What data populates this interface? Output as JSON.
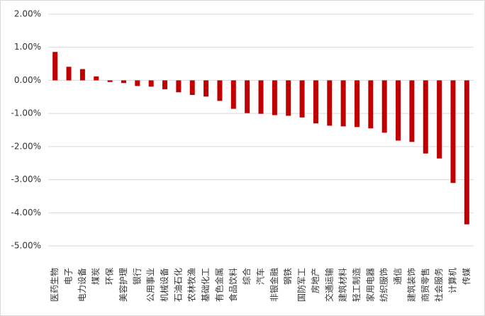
{
  "chart_data": {
    "type": "bar",
    "categories": [
      "医药生物",
      "电子",
      "电力设备",
      "煤炭",
      "环保",
      "美容护理",
      "银行",
      "公用事业",
      "机械设备",
      "石油石化",
      "农林牧渔",
      "基础化工",
      "有色金属",
      "食品饮料",
      "综合",
      "汽车",
      "非银金融",
      "钢铁",
      "国防军工",
      "房地产",
      "交通运输",
      "建筑材料",
      "轻工制造",
      "家用电器",
      "纺织服饰",
      "通信",
      "建筑装饰",
      "商贸零售",
      "社会服务",
      "计算机",
      "传媒"
    ],
    "values": [
      0.86,
      0.41,
      0.34,
      0.12,
      -0.05,
      -0.08,
      -0.17,
      -0.19,
      -0.27,
      -0.36,
      -0.44,
      -0.49,
      -0.62,
      -0.86,
      -0.99,
      -1.01,
      -1.05,
      -1.07,
      -1.12,
      -1.3,
      -1.37,
      -1.39,
      -1.41,
      -1.45,
      -1.58,
      -1.82,
      -1.86,
      -2.21,
      -2.36,
      -3.1,
      -4.35
    ],
    "color": "#c00000",
    "ylim": [
      -5,
      2
    ],
    "yticks": [
      {
        "value": 2,
        "label": "2.00%"
      },
      {
        "value": 1,
        "label": "1.00%"
      },
      {
        "value": 0,
        "label": "0.00%"
      },
      {
        "value": -1,
        "label": "-1.00%"
      },
      {
        "value": -2,
        "label": "-2.00%"
      },
      {
        "value": -3,
        "label": "-3.00%"
      },
      {
        "value": -4,
        "label": "-4.00%"
      },
      {
        "value": -5,
        "label": "-5.00%"
      }
    ],
    "grid": true
  }
}
